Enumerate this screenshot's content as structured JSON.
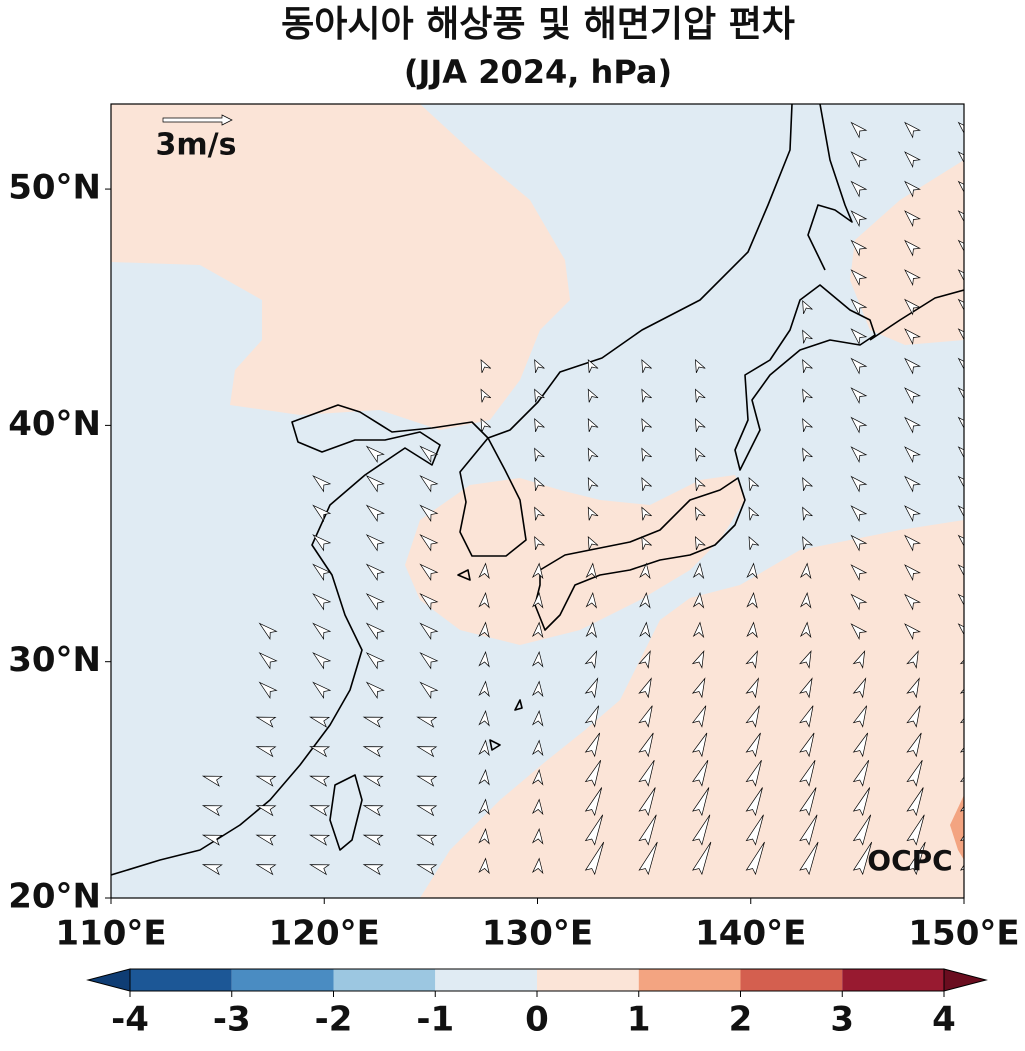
{
  "map": {
    "title": "동아시아 해상풍 및 해면기압 편차",
    "subtitle": "(JJA 2024, hPa)",
    "lonlim": [
      110,
      150
    ],
    "latlim": [
      20,
      53.6
    ],
    "lonticks": [
      {
        "value": 110,
        "label": "110°E"
      },
      {
        "value": 120,
        "label": "120°E"
      },
      {
        "value": 130,
        "label": "130°E"
      },
      {
        "value": 140,
        "label": "140°E"
      },
      {
        "value": 150,
        "label": "150°E"
      }
    ],
    "latticks": [
      {
        "value": 20,
        "label": "20°N"
      },
      {
        "value": 30,
        "label": "30°N"
      },
      {
        "value": 40,
        "label": "40°N"
      },
      {
        "value": 50,
        "label": "50°N"
      }
    ],
    "reference_vector": "3m/s",
    "watermark": "OCPC",
    "colorbar": {
      "ticks": [
        -4,
        -3,
        -2,
        -1,
        0,
        1,
        2,
        3,
        4
      ],
      "colors": [
        "#1c5796",
        "#4a8cc2",
        "#9cc7e1",
        "#e0ebf3",
        "#fbe4d7",
        "#f3a481",
        "#d45f4f",
        "#981a30"
      ],
      "under_color": "#0f3d74",
      "over_color": "#6a0d1f"
    }
  }
}
